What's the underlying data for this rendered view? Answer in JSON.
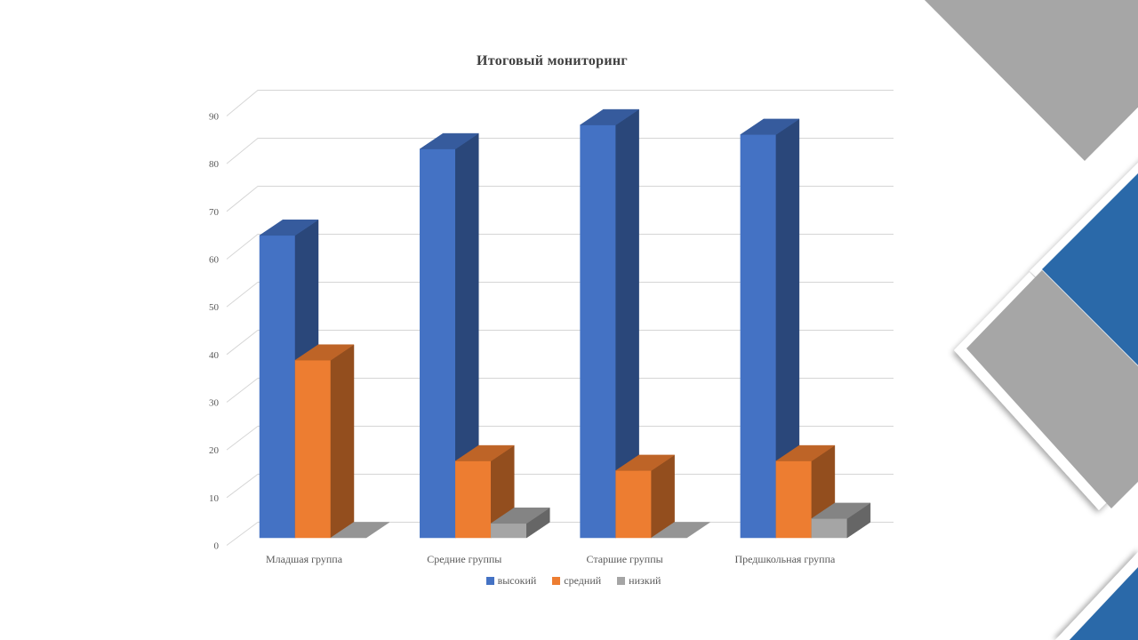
{
  "chart_data": {
    "type": "bar",
    "style": "3d-clustered-column",
    "title": "Итоговый мониторинг",
    "categories": [
      "Младшая группа",
      "Средние группы",
      "Старшие группы",
      "Предшкольная группа"
    ],
    "series": [
      {
        "name": "высокий",
        "color": "#4472C4",
        "values": [
          63,
          81,
          86,
          84
        ]
      },
      {
        "name": "средний",
        "color": "#ED7D31",
        "values": [
          37,
          16,
          14,
          16
        ]
      },
      {
        "name": "низкий",
        "color": "#A5A5A5",
        "values": [
          0,
          3,
          0,
          4
        ]
      }
    ],
    "ylim": [
      0,
      90
    ],
    "ytick_step": 10,
    "ytick_labels": [
      "0",
      "10",
      "20",
      "30",
      "40",
      "50",
      "60",
      "70",
      "80",
      "90"
    ],
    "grid": true,
    "legend_position": "bottom",
    "xlabel": "",
    "ylabel": ""
  },
  "decor": {
    "gray": "#A6A6A6",
    "blue": "#2A69A9",
    "white": "#FFFFFF"
  }
}
